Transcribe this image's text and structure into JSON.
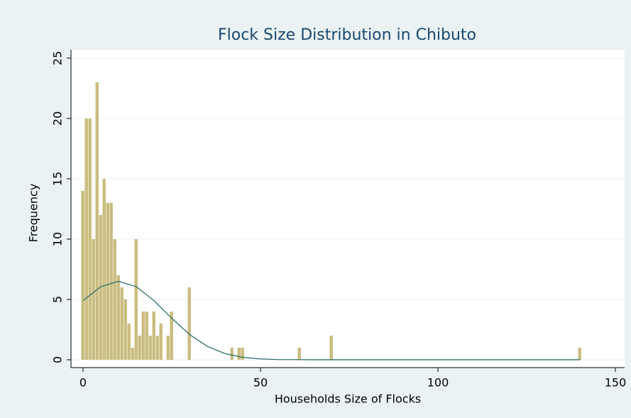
{
  "chart_data": {
    "type": "histogram",
    "title": "Flock Size Distribution in Chibuto",
    "xlabel": "Households Size of Flocks",
    "ylabel": "Frequency",
    "color": "#c9bc7e",
    "curve_color": "#2e6e6b",
    "grid": true,
    "xlim": [
      -3.4,
      152.6
    ],
    "ylim": [
      -0.65,
      25.7
    ],
    "xticks": [
      0,
      50,
      100,
      150
    ],
    "yticks": [
      0,
      5,
      10,
      15,
      20,
      25
    ],
    "bins": [
      -0.5,
      0.5,
      1.5,
      2.5,
      3.5,
      4.5,
      5.5,
      6.5,
      7.5,
      8.5,
      9.5,
      10.5,
      11.5,
      12.5,
      13.5,
      14.5,
      15.5,
      16.5,
      17.5,
      18.5,
      19.5,
      20.5,
      21.5,
      22.5,
      23.5,
      24.5,
      25.5,
      26.5,
      27.5,
      28.5,
      29.5,
      30.5,
      31.5,
      32.5,
      33.5,
      34.5,
      35.5,
      36.5,
      37.5,
      38.5,
      39.5,
      40.5,
      41.5,
      42.5,
      43.5,
      44.5,
      45.5,
      46.5,
      47.5,
      48.5,
      49.5,
      50.5,
      51.5,
      52.5,
      53.5,
      54.5,
      55.5,
      56.5,
      57.5,
      58.5,
      59.5,
      60.5,
      61.5,
      62.5,
      63.5,
      64.5,
      65.5,
      66.5,
      67.5,
      68.5,
      69.5,
      70.5,
      71.5,
      72.5,
      73.5,
      74.5,
      75.5,
      76.5,
      77.5,
      78.5,
      79.5,
      80.5,
      81.5,
      82.5,
      83.5,
      84.5,
      85.5,
      86.5,
      87.5,
      88.5,
      89.5,
      90.5,
      91.5,
      92.5,
      93.5,
      94.5,
      95.5,
      96.5,
      97.5,
      98.5,
      99.5,
      100.5,
      101.5,
      102.5,
      103.5,
      104.5,
      105.5,
      106.5,
      107.5,
      108.5,
      109.5,
      110.5,
      111.5,
      112.5,
      113.5,
      114.5,
      115.5,
      116.5,
      117.5,
      118.5,
      119.5,
      120.5,
      121.5,
      122.5,
      123.5,
      124.5,
      125.5,
      126.5,
      127.5,
      128.5,
      129.5,
      130.5,
      131.5,
      132.5,
      133.5,
      134.5,
      135.5,
      136.5,
      137.5,
      138.5,
      139.5,
      140.5
    ],
    "counts": [
      14,
      20,
      20,
      10,
      23,
      12,
      15,
      13,
      13,
      10,
      7,
      6,
      5,
      3,
      1,
      10,
      2,
      4,
      4,
      2,
      4,
      2,
      3,
      0,
      2,
      4,
      0,
      0,
      0,
      0,
      6,
      0,
      0,
      0,
      0,
      0,
      0,
      0,
      0,
      0,
      0,
      0,
      1,
      0,
      1,
      1,
      0,
      0,
      0,
      0,
      0,
      0,
      0,
      0,
      0,
      0,
      0,
      0,
      0,
      0,
      0,
      1,
      0,
      0,
      0,
      0,
      0,
      0,
      0,
      0,
      2,
      0,
      0,
      0,
      0,
      0,
      0,
      0,
      0,
      0,
      0,
      0,
      0,
      0,
      0,
      0,
      0,
      0,
      0,
      0,
      0,
      0,
      0,
      0,
      0,
      0,
      0,
      0,
      0,
      0,
      0,
      0,
      0,
      0,
      0,
      0,
      0,
      0,
      0,
      0,
      0,
      0,
      0,
      0,
      0,
      0,
      0,
      0,
      0,
      0,
      0,
      0,
      0,
      0,
      0,
      0,
      0,
      0,
      0,
      0,
      0,
      0,
      0,
      0,
      0,
      0,
      0,
      0,
      0,
      0,
      1
    ],
    "curve": {
      "x": [
        0,
        5,
        10,
        15,
        20,
        25,
        30,
        35,
        40,
        45,
        50,
        55,
        60,
        65,
        70,
        75,
        80,
        85,
        90,
        95,
        100,
        105,
        110,
        115,
        120,
        125,
        130,
        135,
        140
      ],
      "values": [
        4.9,
        6.06,
        6.5,
        6.06,
        4.9,
        3.44,
        2.1,
        1.11,
        0.51,
        0.2,
        0.07,
        0.02,
        0.01,
        0,
        0,
        0,
        0,
        0,
        0,
        0,
        0,
        0,
        0,
        0,
        0,
        0,
        0,
        0,
        0
      ]
    }
  }
}
